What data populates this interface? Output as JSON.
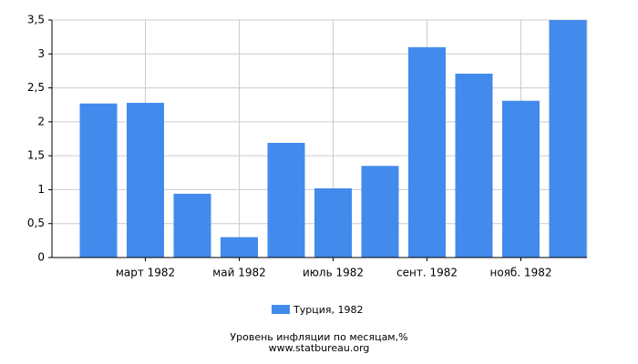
{
  "chart_data": {
    "type": "bar",
    "title": "Уровень инфляции по месяцам,%",
    "source": "www.statbureau.org",
    "categories": [
      null,
      "март 1982",
      null,
      "май 1982",
      null,
      "июль 1982",
      null,
      "сент. 1982",
      null,
      "нояб. 1982",
      null
    ],
    "series": [
      {
        "name": "Турция, 1982",
        "color": "#428bed",
        "values": [
          2.27,
          2.28,
          0.94,
          0.3,
          1.69,
          1.02,
          1.35,
          3.1,
          2.71,
          2.31,
          3.5
        ]
      }
    ],
    "ylim": [
      0,
      3.5
    ],
    "yticks": [
      0,
      {
        "value": 0.5,
        "label": "0,5"
      },
      1,
      {
        "value": 1.5,
        "label": "1,5"
      },
      2,
      {
        "value": 2.5,
        "label": "2,5"
      },
      3,
      {
        "value": 3.5,
        "label": "3,5"
      }
    ],
    "grid": true
  }
}
